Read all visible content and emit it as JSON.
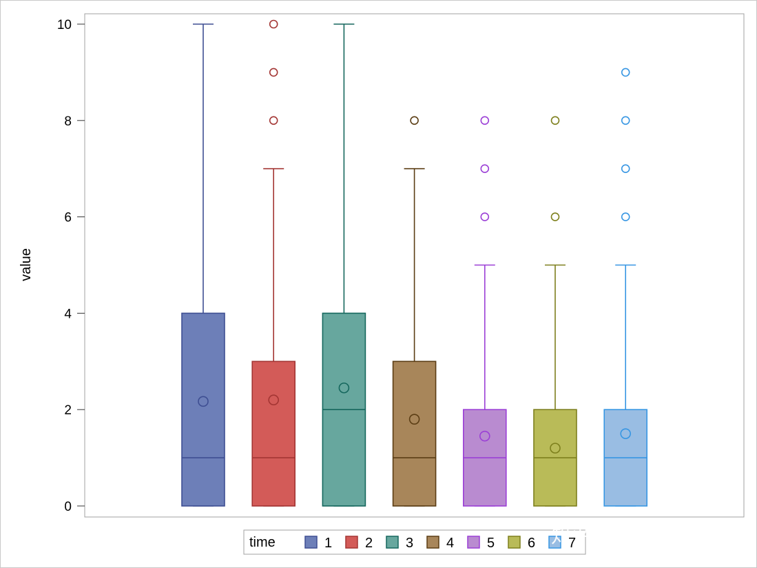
{
  "chart_data": {
    "type": "box",
    "ylabel": "value",
    "ylim": [
      0,
      10
    ],
    "yticks": [
      0,
      2,
      4,
      6,
      8,
      10
    ],
    "grid": false,
    "legend": {
      "title": "time",
      "placement": "bottom-center"
    },
    "series": [
      {
        "name": "1",
        "color": "#6d7fb8",
        "edge": "#3e4e92",
        "q1": 0,
        "median": 1,
        "q3": 4,
        "whisker_low": 0,
        "whisker_high": 10,
        "mean": 2.17,
        "outliers": []
      },
      {
        "name": "2",
        "color": "#d35b58",
        "edge": "#a33533",
        "q1": 0,
        "median": 1,
        "q3": 3,
        "whisker_low": 0,
        "whisker_high": 7,
        "mean": 2.2,
        "outliers": [
          8,
          9,
          10
        ]
      },
      {
        "name": "3",
        "color": "#67a79e",
        "edge": "#15675d",
        "q1": 0,
        "median": 2,
        "q3": 4,
        "whisker_low": 0,
        "whisker_high": 10,
        "mean": 2.45,
        "outliers": []
      },
      {
        "name": "4",
        "color": "#a8865a",
        "edge": "#5b3d14",
        "q1": 0,
        "median": 1,
        "q3": 3,
        "whisker_low": 0,
        "whisker_high": 7,
        "mean": 1.8,
        "outliers": [
          8
        ]
      },
      {
        "name": "5",
        "color": "#b98bd0",
        "edge": "#9b3fd6",
        "q1": 0,
        "median": 1,
        "q3": 2,
        "whisker_low": 0,
        "whisker_high": 5,
        "mean": 1.45,
        "outliers": [
          6,
          7,
          8
        ]
      },
      {
        "name": "6",
        "color": "#b9bb58",
        "edge": "#7d7f1c",
        "q1": 0,
        "median": 1,
        "q3": 2,
        "whisker_low": 0,
        "whisker_high": 5,
        "mean": 1.2,
        "outliers": [
          6,
          8
        ]
      },
      {
        "name": "7",
        "color": "#99bde3",
        "edge": "#3796e3",
        "q1": 0,
        "median": 1,
        "q3": 2,
        "whisker_low": 0,
        "whisker_high": 5,
        "mean": 1.5,
        "outliers": [
          6,
          7,
          8,
          9
        ]
      }
    ]
  },
  "watermark": "知乎 @统计碎碎念"
}
